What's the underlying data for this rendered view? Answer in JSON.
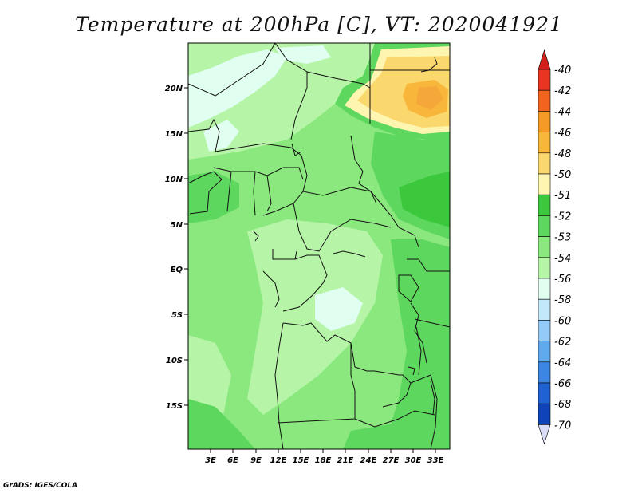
{
  "title": "Temperature at 200hPa [C], VT: 2020041921",
  "footer": "GrADS: IGES/COLA",
  "map": {
    "lat_ticks": [
      "20N",
      "15N",
      "10N",
      "5N",
      "EQ",
      "5S",
      "10S",
      "15S"
    ],
    "lon_ticks": [
      "3E",
      "6E",
      "9E",
      "12E",
      "15E",
      "18E",
      "21E",
      "24E",
      "27E",
      "30E",
      "33E"
    ]
  },
  "colorbar": {
    "levels": [
      "-40",
      "-42",
      "-44",
      "-46",
      "-48",
      "-50",
      "-51",
      "-52",
      "-53",
      "-54",
      "-56",
      "-58",
      "-60",
      "-62",
      "-64",
      "-66",
      "-68",
      "-70"
    ],
    "colors": [
      "#e8351f",
      "#f0641e",
      "#f59a26",
      "#f8b63b",
      "#fbd86e",
      "#fef6b0",
      "#3cc83c",
      "#5ed75e",
      "#8be87e",
      "#b6f5a8",
      "#e0fff0",
      "#c4e8fb",
      "#93cbf6",
      "#5fa9ee",
      "#3a86e2",
      "#1f62d2",
      "#0f44b8",
      "#0b1d7a"
    ],
    "top_triangle_color": "#d4201a",
    "bottom_triangle_color": "#d9dcf6"
  },
  "colors": {
    "map_frame": "#000000",
    "borders": "#111111"
  }
}
